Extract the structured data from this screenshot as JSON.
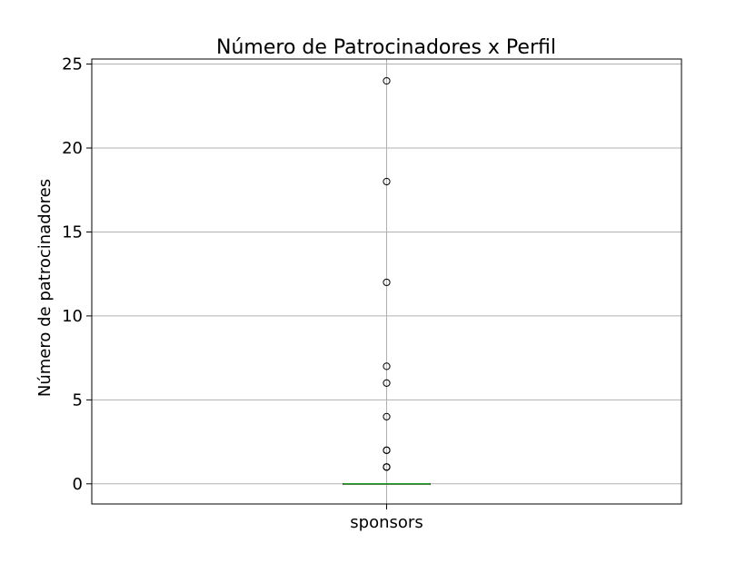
{
  "chart_data": {
    "type": "box",
    "title": "Número de Patrocinadores x Perfil",
    "xlabel": "",
    "ylabel": "Número de patrocinadores",
    "categories": [
      "sponsors"
    ],
    "ylim": [
      -1.2,
      25.3
    ],
    "yticks": [
      0,
      5,
      10,
      15,
      20,
      25
    ],
    "grid": true,
    "box": {
      "category": "sponsors",
      "min": 0,
      "q1": 0,
      "median": 0,
      "q3": 0,
      "max": 0
    },
    "outliers": [
      24,
      18,
      12,
      7,
      6,
      4,
      2,
      2,
      1,
      1,
      1
    ],
    "colors": {
      "median_line": "#2ca02c",
      "grid": "#b0b0b0",
      "outlier_edge": "#000000",
      "axes": "#000000"
    }
  }
}
